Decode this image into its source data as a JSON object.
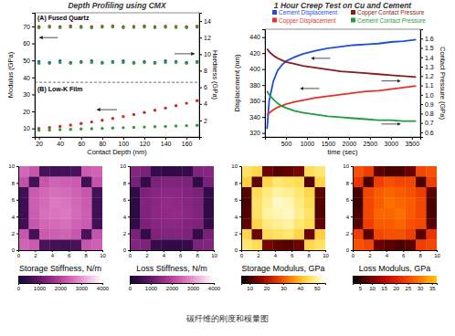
{
  "chart_data": [
    {
      "type": "scatter",
      "title": "Depth Profiling using CMX",
      "x_label": "Contact Depth (nm)",
      "y_label": "Modulus (GPa)",
      "y2_label": "Hardness (GPa)",
      "annotations": [
        "(A) Fused Quartz",
        "(B) Low-K Film"
      ],
      "x": [
        20,
        30,
        40,
        50,
        60,
        70,
        80,
        90,
        100,
        110,
        120,
        130,
        140,
        150,
        160,
        170
      ],
      "xlim": [
        16,
        172
      ],
      "xticks": [
        20,
        40,
        60,
        80,
        100,
        120,
        140,
        160
      ],
      "ylim": [
        5,
        78
      ],
      "yticks": [
        10,
        20,
        30,
        40,
        50,
        60,
        70
      ],
      "y2lim": [
        0,
        15
      ],
      "y2ticks": [
        2,
        4,
        6,
        8,
        10,
        12,
        14
      ],
      "series": [
        {
          "color": "#d62728",
          "marker": "circle",
          "values": [
            69.8,
            70.1,
            69.9,
            70.2,
            70.0,
            69.8,
            70.1,
            70.3,
            69.9,
            70.0,
            70.2,
            69.9,
            70.1,
            70.0,
            69.8,
            70.1
          ]
        },
        {
          "color": "#2ca02c",
          "marker": "circle",
          "values": [
            69.2,
            69.5,
            69.3,
            69.6,
            69.4,
            69.2,
            69.5,
            69.7,
            69.3,
            69.4,
            69.6,
            69.3,
            69.5,
            69.4,
            69.2,
            69.5
          ]
        },
        {
          "color": "#1f4fc8",
          "marker": "circle",
          "axis": "y2",
          "values": [
            9.1,
            9.0,
            9.2,
            9.0,
            9.1,
            9.2,
            9.0,
            9.1,
            9.2,
            9.0,
            9.1,
            9.0,
            9.2,
            9.1,
            9.0,
            9.1
          ]
        },
        {
          "color": "#2ca02c",
          "marker": "circle",
          "axis": "y2",
          "values": [
            8.9,
            8.9,
            9.0,
            8.9,
            9.0,
            9.0,
            8.9,
            9.0,
            9.0,
            8.9,
            9.0,
            8.9,
            9.0,
            9.0,
            8.9,
            9.0
          ]
        },
        {
          "color": "#d62728",
          "marker": "circle",
          "values": [
            10.0,
            10.5,
            11.2,
            12.0,
            12.9,
            13.8,
            14.8,
            15.9,
            17.0,
            18.2,
            19.4,
            20.7,
            22.0,
            23.4,
            24.8,
            26.3
          ]
        },
        {
          "color": "#2ca02c",
          "marker": "circle",
          "axis": "y2",
          "values": [
            0.8,
            0.83,
            0.88,
            0.91,
            0.96,
            1.0,
            1.03,
            1.08,
            1.12,
            1.15,
            1.2,
            1.24,
            1.27,
            1.32,
            1.36,
            1.4
          ]
        }
      ]
    },
    {
      "type": "line",
      "title": "1 Hour Creep Test on Cu and Cement",
      "x_label": "time (sec)",
      "y_label": "Displacement (nm)",
      "y2_label": "Contact Pressure (GPa)",
      "legend": "top",
      "x": [
        50,
        100,
        200,
        300,
        400,
        500,
        700,
        900,
        1200,
        1500,
        1800,
        2100,
        2400,
        2700,
        3000,
        3300,
        3600
      ],
      "xlim": [
        0,
        3700
      ],
      "xticks": [
        500,
        1000,
        1500,
        2000,
        2500,
        3000,
        3500
      ],
      "ylim": [
        315,
        450
      ],
      "yticks": [
        320,
        340,
        360,
        380,
        400,
        420,
        440
      ],
      "y2lim": [
        0.55,
        1.7
      ],
      "y2ticks": [
        0.6,
        0.7,
        0.8,
        0.9,
        {
          "value": 1,
          "label": "1.0"
        },
        1.1,
        1.2,
        1.3,
        1.4,
        1.5,
        1.6
      ],
      "series": [
        {
          "name": "Cement Displacement",
          "color": "#1f4fd8",
          "values": [
            325,
            360,
            385,
            398,
            405,
            410,
            415,
            419,
            423,
            426,
            428,
            430,
            431,
            432,
            434,
            435,
            437
          ]
        },
        {
          "name": "Copper Displacement",
          "color": "#e8302a",
          "values": [
            342,
            345,
            349,
            352,
            354,
            356,
            359,
            361,
            364,
            366,
            368,
            370,
            372,
            373,
            375,
            377,
            379
          ]
        },
        {
          "name": "Copper Contact Pressure",
          "color": "#8b1a1a",
          "axis": "y2",
          "values": [
            1.49,
            1.46,
            1.42,
            1.39,
            1.37,
            1.35,
            1.33,
            1.31,
            1.29,
            1.27,
            1.25,
            1.24,
            1.23,
            1.22,
            1.21,
            1.2,
            1.19
          ]
        },
        {
          "name": "Cement Contact Pressure",
          "color": "#1e9e3a",
          "axis": "y2",
          "values": [
            1.04,
            1.0,
            0.95,
            0.91,
            0.88,
            0.86,
            0.83,
            0.81,
            0.79,
            0.77,
            0.76,
            0.75,
            0.74,
            0.73,
            0.73,
            0.72,
            0.72
          ]
        }
      ]
    },
    {
      "type": "heatmap",
      "title": "Storage Stiffness, N/m",
      "xlim": [
        0,
        10
      ],
      "xticks": [
        0,
        2,
        4,
        6,
        8,
        10
      ],
      "ylim": [
        0,
        10
      ],
      "yticks": [
        0,
        2,
        4,
        6,
        8,
        10
      ],
      "z": [
        [
          2500,
          2300,
          700,
          600,
          650,
          720,
          2350,
          2450
        ],
        [
          2200,
          650,
          2300,
          2450,
          2400,
          2350,
          600,
          2250
        ],
        [
          600,
          2350,
          2500,
          2600,
          2550,
          2450,
          2300,
          650
        ],
        [
          550,
          2400,
          2550,
          2700,
          2650,
          2500,
          2350,
          600
        ],
        [
          580,
          2380,
          2600,
          2650,
          2700,
          2550,
          2400,
          620
        ],
        [
          620,
          2300,
          2500,
          2550,
          2600,
          2450,
          2350,
          640
        ],
        [
          2300,
          680,
          2350,
          2400,
          2450,
          2300,
          700,
          2250
        ],
        [
          2450,
          2350,
          750,
          650,
          600,
          700,
          2300,
          2400
        ]
      ],
      "zlim": [
        0,
        4000
      ],
      "zticks": [
        0,
        1000,
        2000,
        3000,
        4000
      ]
    },
    {
      "type": "heatmap",
      "title": "Loss Stiffness, N/m",
      "xlim": [
        0,
        10
      ],
      "xticks": [
        0,
        2,
        4,
        6,
        8,
        10
      ],
      "ylim": [
        0,
        10
      ],
      "yticks": [
        0,
        2,
        4,
        6,
        8,
        10
      ],
      "z": [
        [
          1400,
          1300,
          420,
          380,
          400,
          430,
          1350,
          1420
        ],
        [
          1250,
          390,
          1300,
          1380,
          1360,
          1320,
          370,
          1280
        ],
        [
          360,
          1330,
          1420,
          1480,
          1450,
          1390,
          1300,
          400
        ],
        [
          340,
          1360,
          1450,
          1540,
          1500,
          1420,
          1330,
          370
        ],
        [
          350,
          1350,
          1480,
          1510,
          1540,
          1450,
          1360,
          380
        ],
        [
          380,
          1300,
          1420,
          1450,
          1480,
          1390,
          1330,
          390
        ],
        [
          1300,
          410,
          1330,
          1360,
          1390,
          1310,
          420,
          1270
        ],
        [
          1390,
          1330,
          450,
          400,
          370,
          420,
          1310,
          1360
        ]
      ],
      "zlim": [
        0,
        4000
      ],
      "zticks": [
        0,
        1000,
        2000,
        3000,
        4000
      ]
    },
    {
      "type": "heatmap",
      "title": "Storage Modulus, GPa",
      "xlim": [
        0,
        10
      ],
      "xticks": [
        0,
        2,
        4,
        6,
        8,
        10
      ],
      "ylim": [
        0,
        10
      ],
      "yticks": [
        0,
        2,
        4,
        6,
        8,
        10
      ],
      "z": [
        [
          46,
          44,
          14,
          12,
          13,
          15,
          45,
          47
        ],
        [
          43,
          13,
          44,
          47,
          46,
          45,
          12,
          44
        ],
        [
          12,
          45,
          48,
          50,
          49,
          47,
          44,
          13
        ],
        [
          11,
          46,
          49,
          52,
          51,
          48,
          45,
          12
        ],
        [
          12,
          46,
          50,
          51,
          52,
          49,
          46,
          12
        ],
        [
          13,
          44,
          48,
          49,
          50,
          47,
          45,
          13
        ],
        [
          44,
          14,
          45,
          46,
          47,
          44,
          14,
          43
        ],
        [
          47,
          45,
          15,
          13,
          12,
          14,
          44,
          46
        ]
      ],
      "zlim": [
        5,
        55
      ],
      "zticks": [
        10,
        20,
        30,
        40,
        50
      ]
    },
    {
      "type": "heatmap",
      "title": "Loss Modulus, GPa",
      "xlim": [
        0,
        10
      ],
      "xticks": [
        0,
        2,
        4,
        6,
        8,
        10
      ],
      "ylim": [
        0,
        10
      ],
      "yticks": [
        0,
        2,
        4,
        6,
        8,
        10
      ],
      "z": [
        [
          26,
          24,
          8,
          7,
          7,
          9,
          25,
          26
        ],
        [
          23,
          7,
          24,
          26,
          25,
          25,
          7,
          24
        ],
        [
          7,
          25,
          27,
          28,
          27,
          26,
          24,
          8
        ],
        [
          6,
          25,
          27,
          29,
          28,
          27,
          25,
          7
        ],
        [
          7,
          25,
          28,
          28,
          29,
          27,
          25,
          7
        ],
        [
          8,
          24,
          27,
          27,
          28,
          26,
          25,
          8
        ],
        [
          24,
          8,
          25,
          26,
          26,
          24,
          8,
          23
        ],
        [
          26,
          25,
          9,
          8,
          7,
          8,
          24,
          25
        ]
      ],
      "zlim": [
        2,
        37
      ],
      "zticks": [
        5,
        10,
        15,
        20,
        25,
        30,
        35
      ]
    }
  ],
  "caption": "碳纤维的刚度和模量图"
}
